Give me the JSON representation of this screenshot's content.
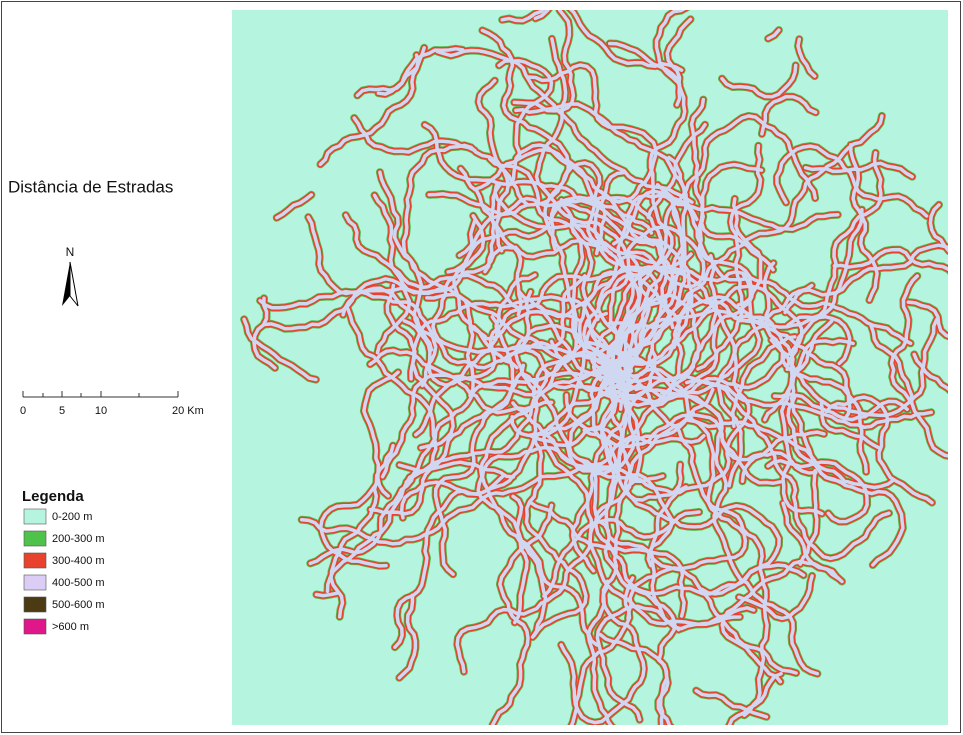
{
  "title": "Distância de Estradas",
  "north_arrow": {
    "label": "N"
  },
  "scale_bar": {
    "labels": [
      "0",
      "5",
      "10",
      "20 Km"
    ]
  },
  "legend": {
    "title": "Legenda",
    "items": [
      {
        "label": "0-200 m",
        "color": "#b5f5df"
      },
      {
        "label": "200-300 m",
        "color": "#4fc24c"
      },
      {
        "label": "300-400 m",
        "color": "#e8422f"
      },
      {
        "label": "400-500 m",
        "color": "#dbcdf5"
      },
      {
        "label": "500-600 m",
        "color": "#4b3a12"
      },
      {
        "label": ">600 m",
        "color": "#e0168b"
      }
    ]
  }
}
